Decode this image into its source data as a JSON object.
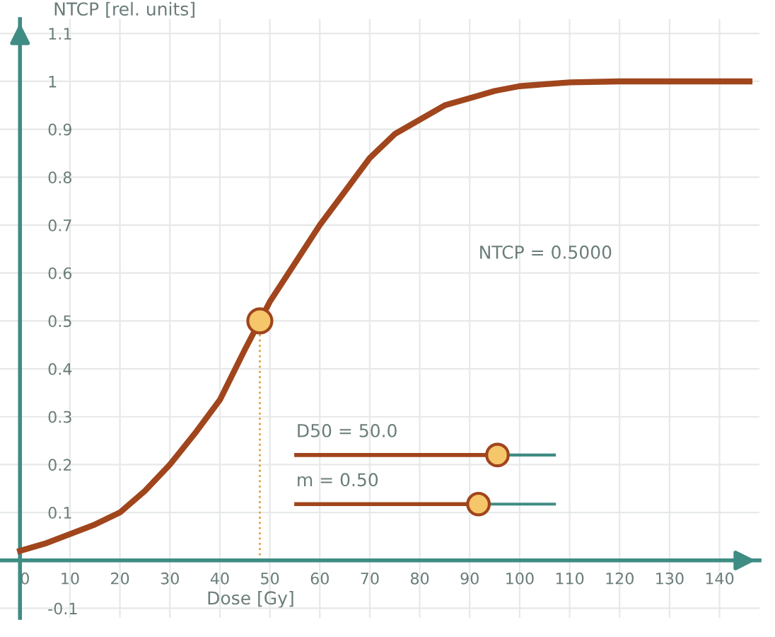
{
  "chart_data": {
    "type": "line",
    "xlabel": "Dose [Gy]",
    "ylabel": "NTCP [rel. units]",
    "xlim": [
      -4,
      148
    ],
    "ylim": [
      -0.12,
      1.13
    ],
    "xticks": [
      0,
      10,
      20,
      30,
      40,
      50,
      60,
      70,
      80,
      90,
      100,
      110,
      120,
      130,
      140
    ],
    "yticks": [
      -0.1,
      {
        "value": 0,
        "label": null
      },
      0.1,
      0.2,
      0.3,
      0.4,
      0.5,
      0.6,
      0.7,
      0.8,
      0.9,
      1,
      1.1
    ],
    "grid": true,
    "line_style": "solid",
    "series": [
      {
        "color": "#a0451c",
        "x": [
          0,
          5,
          10,
          15,
          20,
          25,
          30,
          35,
          40,
          45,
          50,
          55,
          60,
          65,
          70,
          75,
          80,
          85,
          90,
          95,
          100,
          110,
          120,
          130,
          146
        ],
        "values": [
          0.02,
          0.035,
          0.055,
          0.075,
          0.1,
          0.145,
          0.2,
          0.265,
          0.335,
          0.44,
          0.54,
          0.62,
          0.7,
          0.77,
          0.84,
          0.89,
          0.92,
          0.95,
          0.965,
          0.98,
          0.99,
          0.998,
          1.0,
          1.0,
          1.0
        ]
      },
      {
        "type": "scatter",
        "marker": "circle",
        "color": "#f5c66a",
        "x": [
          48
        ],
        "values": [
          0.5
        ]
      }
    ],
    "ref_lines": [
      {
        "axis": "x",
        "value": 48,
        "color": "#e0a040",
        "line_style": "dotted"
      }
    ],
    "annotations": [
      "NTCP = 0.5000",
      "D50 = 50.0",
      "m = 0.50"
    ]
  }
}
